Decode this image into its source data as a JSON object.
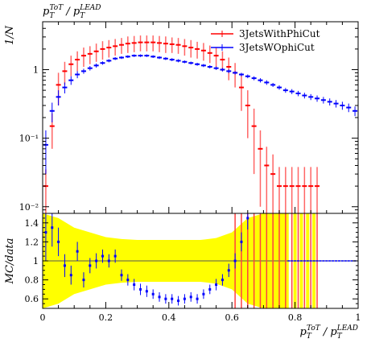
{
  "chart_data": {
    "type": "line",
    "title": "",
    "main_panel": {
      "title": "p_T^{ToT} / p_T^{LEAD}",
      "ylabel": "1/N",
      "yscale": "log",
      "ylim": [
        0.008,
        5
      ],
      "y_tick_labels": [
        "10⁻²",
        "10⁻¹",
        "1"
      ],
      "y_tick_values": [
        0.01,
        0.1,
        1
      ],
      "legend_position": "top-right",
      "series": [
        {
          "name": "3JetsWithPhiCut",
          "color": "#ff0000",
          "style": "points-with-errors",
          "x": [
            0.01,
            0.03,
            0.05,
            0.07,
            0.09,
            0.11,
            0.13,
            0.15,
            0.17,
            0.19,
            0.21,
            0.23,
            0.25,
            0.27,
            0.29,
            0.31,
            0.33,
            0.35,
            0.37,
            0.39,
            0.41,
            0.43,
            0.45,
            0.47,
            0.49,
            0.51,
            0.53,
            0.55,
            0.57,
            0.59,
            0.61,
            0.63,
            0.65,
            0.67,
            0.69,
            0.71,
            0.73,
            0.75,
            0.77,
            0.79,
            0.81,
            0.83,
            0.85,
            0.87
          ],
          "y": [
            0.02,
            0.15,
            0.6,
            0.95,
            1.2,
            1.4,
            1.6,
            1.7,
            1.85,
            2.0,
            2.1,
            2.2,
            2.3,
            2.4,
            2.45,
            2.5,
            2.5,
            2.5,
            2.45,
            2.4,
            2.35,
            2.3,
            2.2,
            2.1,
            2.0,
            1.9,
            1.75,
            1.6,
            1.4,
            1.1,
            0.9,
            0.55,
            0.3,
            0.15,
            0.07,
            0.04,
            0.03,
            0.02,
            0.02,
            0.02,
            0.02,
            0.02,
            0.02,
            0.02
          ],
          "err": [
            0.015,
            0.08,
            0.3,
            0.35,
            0.4,
            0.45,
            0.5,
            0.5,
            0.55,
            0.6,
            0.6,
            0.6,
            0.6,
            0.65,
            0.65,
            0.65,
            0.65,
            0.65,
            0.65,
            0.65,
            0.6,
            0.6,
            0.6,
            0.6,
            0.55,
            0.55,
            0.5,
            0.5,
            0.45,
            0.4,
            0.35,
            0.3,
            0.2,
            0.12,
            0.06,
            0.035,
            0.028,
            0.018,
            0.018,
            0.018,
            0.018,
            0.018,
            0.018,
            0.018
          ]
        },
        {
          "name": "3JetsWOphiCut",
          "color": "#0000ff",
          "style": "points-with-errors",
          "x": [
            0.01,
            0.03,
            0.05,
            0.07,
            0.09,
            0.11,
            0.13,
            0.15,
            0.17,
            0.19,
            0.21,
            0.23,
            0.25,
            0.27,
            0.29,
            0.31,
            0.33,
            0.35,
            0.37,
            0.39,
            0.41,
            0.43,
            0.45,
            0.47,
            0.49,
            0.51,
            0.53,
            0.55,
            0.57,
            0.59,
            0.61,
            0.63,
            0.65,
            0.67,
            0.69,
            0.71,
            0.73,
            0.75,
            0.77,
            0.79,
            0.81,
            0.83,
            0.85,
            0.87,
            0.89,
            0.91,
            0.93,
            0.95,
            0.97,
            0.99
          ],
          "y": [
            0.08,
            0.25,
            0.4,
            0.55,
            0.7,
            0.85,
            0.95,
            1.05,
            1.15,
            1.25,
            1.35,
            1.45,
            1.5,
            1.55,
            1.6,
            1.6,
            1.6,
            1.55,
            1.5,
            1.45,
            1.4,
            1.35,
            1.3,
            1.25,
            1.2,
            1.15,
            1.1,
            1.05,
            1.0,
            0.95,
            0.9,
            0.85,
            0.8,
            0.75,
            0.7,
            0.65,
            0.6,
            0.55,
            0.5,
            0.48,
            0.45,
            0.42,
            0.4,
            0.38,
            0.36,
            0.34,
            0.32,
            0.3,
            0.28,
            0.25
          ],
          "err": [
            0.05,
            0.08,
            0.1,
            0.1,
            0.1,
            0.1,
            0.08,
            0.08,
            0.08,
            0.07,
            0.07,
            0.07,
            0.07,
            0.07,
            0.07,
            0.07,
            0.07,
            0.07,
            0.07,
            0.07,
            0.07,
            0.07,
            0.06,
            0.06,
            0.06,
            0.06,
            0.06,
            0.06,
            0.06,
            0.06,
            0.05,
            0.05,
            0.05,
            0.05,
            0.05,
            0.05,
            0.04,
            0.04,
            0.04,
            0.04,
            0.04,
            0.04,
            0.04,
            0.04,
            0.04,
            0.04,
            0.04,
            0.04,
            0.04,
            0.04
          ]
        }
      ]
    },
    "ratio_panel": {
      "ylabel": "MC/data",
      "ylim": [
        0.5,
        1.5
      ],
      "y_tick_labels": [
        "0.6",
        "0.8",
        "1",
        "1.2",
        "1.4"
      ],
      "y_tick_values": [
        0.6,
        0.8,
        1.0,
        1.2,
        1.4
      ],
      "reference_line": 1.0,
      "band_color": "#ffff00",
      "band": {
        "x": [
          0.0,
          0.05,
          0.1,
          0.15,
          0.2,
          0.25,
          0.3,
          0.35,
          0.4,
          0.45,
          0.5,
          0.55,
          0.6,
          0.65,
          0.7,
          0.75,
          0.78
        ],
        "half_width": [
          0.5,
          0.45,
          0.35,
          0.3,
          0.25,
          0.23,
          0.22,
          0.22,
          0.22,
          0.22,
          0.22,
          0.24,
          0.3,
          0.45,
          0.5,
          0.5,
          0.5
        ]
      },
      "ratio_x": [
        0.01,
        0.03,
        0.05,
        0.07,
        0.09,
        0.11,
        0.13,
        0.15,
        0.17,
        0.19,
        0.21,
        0.23,
        0.25,
        0.27,
        0.29,
        0.31,
        0.33,
        0.35,
        0.37,
        0.39,
        0.41,
        0.43,
        0.45,
        0.47,
        0.49,
        0.51,
        0.53,
        0.55,
        0.57,
        0.59,
        0.61,
        0.63,
        0.65
      ],
      "ratio_y": [
        1.3,
        1.35,
        1.2,
        0.95,
        0.85,
        1.1,
        0.8,
        0.95,
        1.0,
        1.05,
        1.0,
        1.05,
        0.85,
        0.8,
        0.75,
        0.7,
        0.68,
        0.65,
        0.62,
        0.6,
        0.6,
        0.58,
        0.6,
        0.62,
        0.6,
        0.65,
        0.7,
        0.75,
        0.8,
        0.9,
        1.0,
        1.2,
        1.45
      ],
      "ratio_err": [
        0.3,
        0.2,
        0.15,
        0.12,
        0.1,
        0.1,
        0.08,
        0.08,
        0.08,
        0.07,
        0.07,
        0.07,
        0.06,
        0.06,
        0.06,
        0.06,
        0.06,
        0.05,
        0.05,
        0.05,
        0.05,
        0.05,
        0.05,
        0.05,
        0.05,
        0.05,
        0.05,
        0.06,
        0.06,
        0.07,
        0.08,
        0.1,
        0.12
      ],
      "flat_from": 0.78
    },
    "x_axis": {
      "label": "p_T^{ToT} / p_T^{LEAD}",
      "xlim": [
        0,
        1
      ],
      "tick_labels": [
        "0",
        "0.2",
        "0.4",
        "0.6",
        "0.8",
        "1"
      ],
      "tick_values": [
        0,
        0.2,
        0.4,
        0.6,
        0.8,
        1.0
      ]
    }
  }
}
